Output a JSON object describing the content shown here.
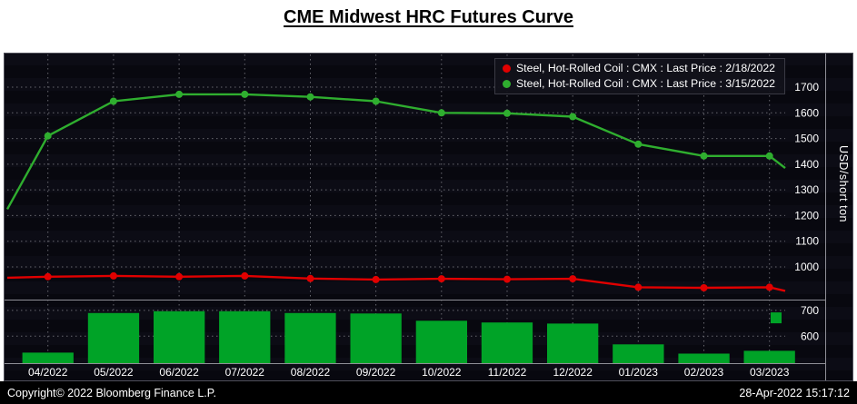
{
  "header": {
    "title": "CME Midwest HRC Futures Curve"
  },
  "axis": {
    "right_label": "USD/short ton"
  },
  "footer": {
    "copyright": "Copyright© 2022 Bloomberg Finance L.P.",
    "timestamp": "28-Apr-2022 15:17:12"
  },
  "chart_data": [
    {
      "type": "line",
      "title": "CME Midwest HRC Futures Curve",
      "categories": [
        "04/2022",
        "05/2022",
        "06/2022",
        "07/2022",
        "08/2022",
        "09/2022",
        "10/2022",
        "11/2022",
        "12/2022",
        "01/2023",
        "02/2023",
        "03/2023"
      ],
      "ylabel": "USD/short ton",
      "ylim": [
        880,
        1820
      ],
      "yticks": [
        1000,
        1100,
        1200,
        1300,
        1400,
        1500,
        1600,
        1700
      ],
      "grid": true,
      "legend_position": "top-right",
      "background": "#0c0c15",
      "series": [
        {
          "name": "Steel, Hot-Rolled Coil : CMX : Last Price : 2/18/2022",
          "color": "#e10000",
          "values": [
            962,
            965,
            962,
            965,
            955,
            951,
            954,
            952,
            954,
            921,
            919,
            921
          ],
          "edge_start": 958,
          "edge_end": 907
        },
        {
          "name": "Steel, Hot-Rolled Coil : CMX : Last Price : 3/15/2022",
          "color": "#2fae2f",
          "values": [
            1510,
            1645,
            1672,
            1672,
            1662,
            1645,
            1600,
            1598,
            1585,
            1478,
            1432,
            1432
          ],
          "edge_start": 1225,
          "edge_end": 1385
        }
      ]
    },
    {
      "type": "bar",
      "categories": [
        "04/2022",
        "05/2022",
        "06/2022",
        "07/2022",
        "08/2022",
        "09/2022",
        "10/2022",
        "11/2022",
        "12/2022",
        "01/2023",
        "02/2023",
        "03/2023"
      ],
      "values": [
        536,
        690,
        697,
        697,
        690,
        688,
        660,
        653,
        649,
        568,
        532,
        543
      ],
      "color": "#00a327",
      "ylim": [
        495,
        735
      ],
      "yticks": [
        600,
        700
      ],
      "marker_value": 671
    }
  ]
}
